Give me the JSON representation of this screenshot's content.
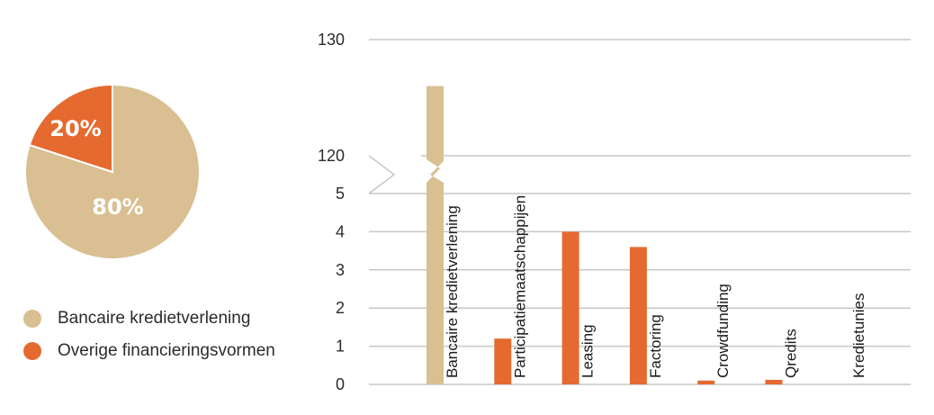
{
  "colors": {
    "bank": "#d9bf91",
    "other": "#e56a30",
    "grid": "#c7c7c7",
    "text": "#2b2b2b"
  },
  "pie": {
    "slices": [
      {
        "label": "Bancaire kredietverlening",
        "value": 80,
        "display": "80%",
        "color": "#d9bf91"
      },
      {
        "label": "Overige financieringsvormen",
        "value": 20,
        "display": "20%",
        "color": "#e56a30"
      }
    ]
  },
  "legend": {
    "items": [
      {
        "label": "Bancaire kredietverlening",
        "color": "#d9bf91"
      },
      {
        "label": "Overige financieringsvormen",
        "color": "#e56a30"
      }
    ]
  },
  "chart_data": [
    {
      "type": "pie",
      "categories": [
        "Bancaire kredietverlening",
        "Overige financieringsvormen"
      ],
      "values": [
        80,
        20
      ],
      "labels": [
        "80%",
        "20%"
      ],
      "legend": "bottom-left"
    },
    {
      "type": "bar",
      "axis_break": {
        "from": 5,
        "to": 120
      },
      "categories": [
        "Bancaire kredietverlening",
        "Participatiemaatschappijen",
        "Leasing",
        "Factoring",
        "Crowdfunding",
        "Qredits",
        "Kredietunies"
      ],
      "values": [
        126,
        1.2,
        4.0,
        3.6,
        0.1,
        0.12,
        0
      ],
      "colors": [
        "#d9bf91",
        "#e56a30",
        "#e56a30",
        "#e56a30",
        "#e56a30",
        "#e56a30",
        "#e56a30"
      ],
      "y_ticks_lower": [
        "0",
        "1",
        "2",
        "3",
        "4",
        "5"
      ],
      "y_ticks_upper": [
        "120",
        "130"
      ],
      "ylim_lower": [
        0,
        5
      ],
      "ylim_upper": [
        120,
        130
      ],
      "grid": true,
      "xlabel": "",
      "ylabel": ""
    }
  ]
}
